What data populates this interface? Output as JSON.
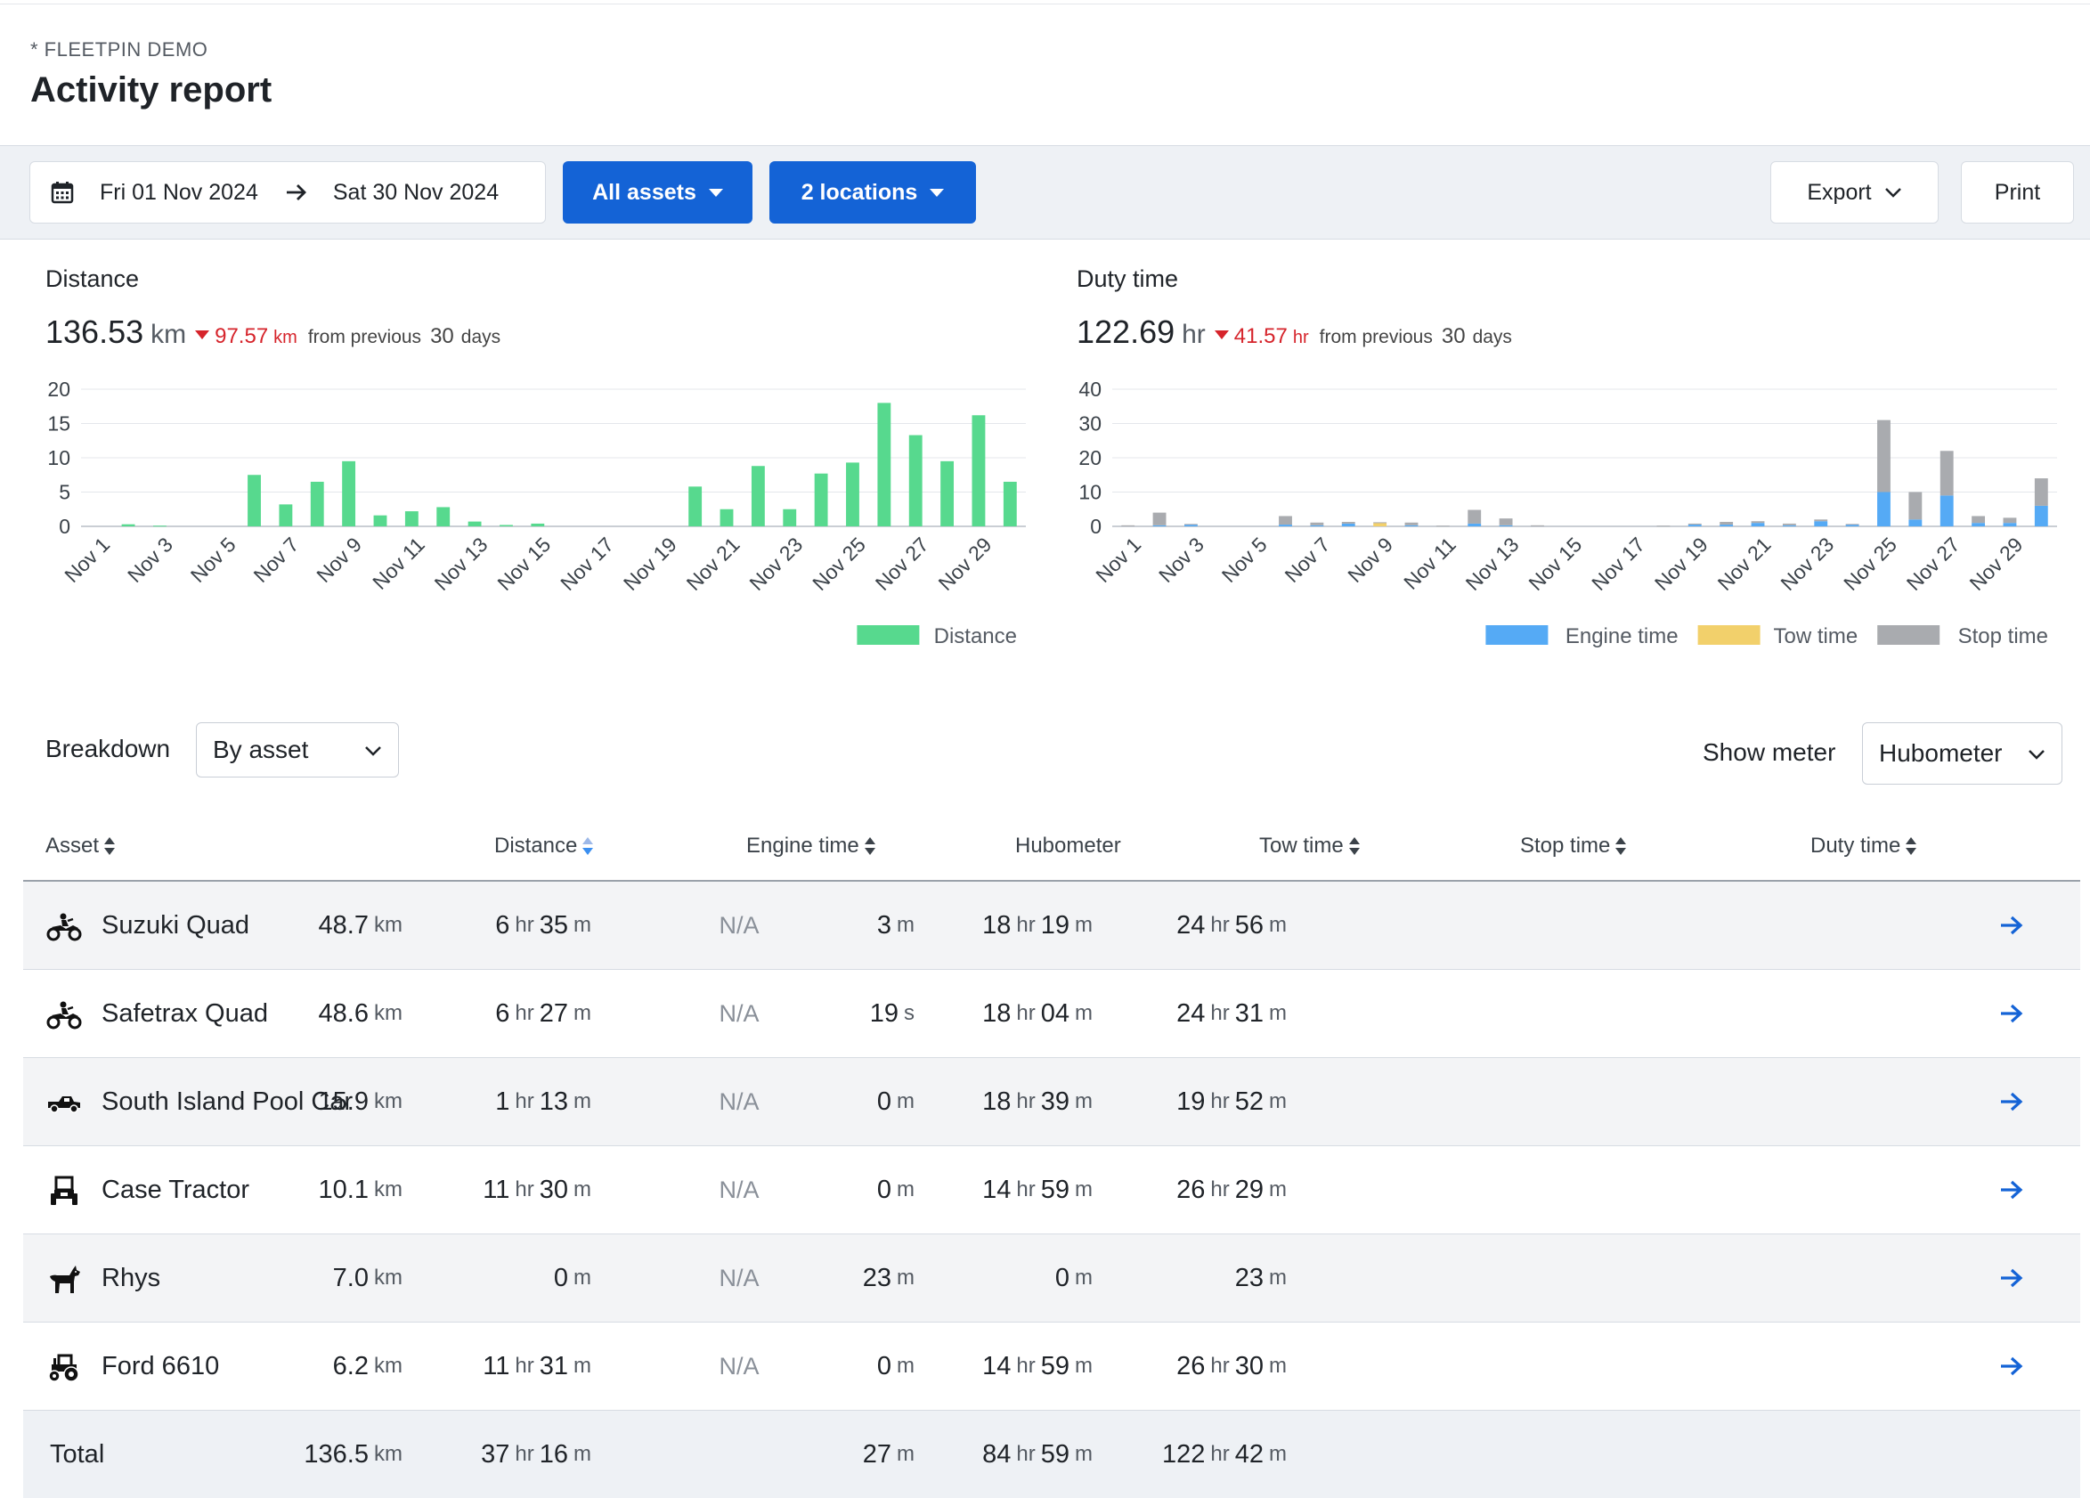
{
  "header": {
    "org": "* FLEETPIN DEMO",
    "title": "Activity report"
  },
  "toolbar": {
    "date_from": "Fri 01 Nov 2024",
    "date_to": "Sat 30 Nov 2024",
    "assets_label": "All assets",
    "locations_label": "2 locations",
    "export_label": "Export",
    "print_label": "Print"
  },
  "distance": {
    "title": "Distance",
    "value": "136.53",
    "unit": "km",
    "delta": "97.57",
    "delta_unit": "km",
    "from_text": "from previous",
    "days": "30",
    "days_label": "days"
  },
  "duty": {
    "title": "Duty time",
    "value": "122.69",
    "unit": "hr",
    "delta": "41.57",
    "delta_unit": "hr",
    "from_text": "from previous",
    "days": "30",
    "days_label": "days"
  },
  "chart_data": [
    {
      "type": "bar",
      "title": "",
      "x": [
        1,
        2,
        3,
        4,
        5,
        6,
        7,
        8,
        9,
        10,
        11,
        12,
        13,
        14,
        15,
        16,
        17,
        18,
        19,
        20,
        21,
        22,
        23,
        24,
        25,
        26,
        27,
        28,
        29,
        30
      ],
      "tick_labels": [
        "Nov 1",
        "Nov 3",
        "Nov 5",
        "Nov 7",
        "Nov 9",
        "Nov 11",
        "Nov 13",
        "Nov 15",
        "Nov 17",
        "Nov 19",
        "Nov 21",
        "Nov 23",
        "Nov 25",
        "Nov 27",
        "Nov 29"
      ],
      "yticks": [
        0,
        5,
        10,
        15,
        20
      ],
      "ylim": [
        0,
        20
      ],
      "grid": true,
      "legend": "bottom-right",
      "series": [
        {
          "name": "Distance",
          "color": "#57d98e",
          "values": [
            0,
            0.3,
            0.1,
            0,
            0,
            7.5,
            3.2,
            6.5,
            9.5,
            1.6,
            2.2,
            2.8,
            0.7,
            0.2,
            0.4,
            0,
            0,
            0,
            0,
            5.8,
            2.5,
            8.8,
            2.5,
            7.7,
            9.3,
            18,
            13.3,
            9.5,
            16.2,
            6.5
          ]
        }
      ]
    },
    {
      "type": "bar",
      "stacked": true,
      "title": "",
      "x": [
        1,
        2,
        3,
        4,
        5,
        6,
        7,
        8,
        9,
        10,
        11,
        12,
        13,
        14,
        15,
        16,
        17,
        18,
        19,
        20,
        21,
        22,
        23,
        24,
        25,
        26,
        27,
        28,
        29,
        30
      ],
      "tick_labels": [
        "Nov 1",
        "Nov 3",
        "Nov 5",
        "Nov 7",
        "Nov 9",
        "Nov 11",
        "Nov 13",
        "Nov 15",
        "Nov 17",
        "Nov 19",
        "Nov 21",
        "Nov 23",
        "Nov 25",
        "Nov 27",
        "Nov 29"
      ],
      "yticks": [
        0,
        10,
        20,
        30,
        40
      ],
      "ylim": [
        0,
        40
      ],
      "grid": true,
      "legend": "bottom-right",
      "series": [
        {
          "name": "Engine time",
          "color": "#55aaf5",
          "values": [
            0,
            0.3,
            0.5,
            0,
            0,
            0.5,
            0.3,
            0.8,
            0,
            0.3,
            0,
            0.8,
            0.3,
            0,
            0,
            0,
            0,
            0,
            0.5,
            0.5,
            1.0,
            0.3,
            1.5,
            0.5,
            10,
            2,
            9,
            1,
            1,
            6
          ]
        },
        {
          "name": "Tow time",
          "color": "#f2d06b",
          "values": [
            0,
            0,
            0,
            0,
            0,
            0,
            0,
            0,
            1.0,
            0,
            0,
            0,
            0,
            0,
            0,
            0,
            0,
            0,
            0,
            0,
            0,
            0,
            0,
            0,
            0,
            0,
            0,
            0,
            0,
            0
          ]
        },
        {
          "name": "Stop time",
          "color": "#a9abaf",
          "values": [
            0.3,
            3.7,
            0.2,
            0,
            0,
            2.5,
            0.8,
            0.5,
            0.2,
            0.8,
            0.2,
            4,
            2,
            0.3,
            0,
            0,
            0,
            0.2,
            0.3,
            0.8,
            0.5,
            0.5,
            0.5,
            0.2,
            21,
            8,
            13,
            2,
            1.5,
            8
          ]
        }
      ]
    }
  ],
  "breakdown": {
    "label": "Breakdown",
    "value": "By asset"
  },
  "meter": {
    "label": "Show meter",
    "value": "Hubometer"
  },
  "table": {
    "headers": {
      "asset": "Asset",
      "distance": "Distance",
      "engine": "Engine time",
      "hubometer": "Hubometer",
      "tow": "Tow time",
      "stop": "Stop time",
      "duty": "Duty time"
    },
    "rows": [
      {
        "icon": "quad-bike-icon",
        "name": "Suzuki Quad",
        "distance": "48.7",
        "distance_unit": "km",
        "engine": [
          "6",
          "hr",
          "35",
          "m"
        ],
        "hubometer": "N/A",
        "tow": [
          "3",
          "m"
        ],
        "stop": [
          "18",
          "hr",
          "19",
          "m"
        ],
        "duty": [
          "24",
          "hr",
          "56",
          "m"
        ]
      },
      {
        "icon": "quad-bike-icon",
        "name": "Safetrax Quad",
        "distance": "48.6",
        "distance_unit": "km",
        "engine": [
          "6",
          "hr",
          "27",
          "m"
        ],
        "hubometer": "N/A",
        "tow": [
          "19",
          "s"
        ],
        "stop": [
          "18",
          "hr",
          "04",
          "m"
        ],
        "duty": [
          "24",
          "hr",
          "31",
          "m"
        ]
      },
      {
        "icon": "ute-icon",
        "name": "South Island Pool Car",
        "distance": "15.9",
        "distance_unit": "km",
        "engine": [
          "1",
          "hr",
          "13",
          "m"
        ],
        "hubometer": "N/A",
        "tow": [
          "0",
          "m"
        ],
        "stop": [
          "18",
          "hr",
          "39",
          "m"
        ],
        "duty": [
          "19",
          "hr",
          "52",
          "m"
        ]
      },
      {
        "icon": "tractor-front-icon",
        "name": "Case Tractor",
        "distance": "10.1",
        "distance_unit": "km",
        "engine": [
          "11",
          "hr",
          "30",
          "m"
        ],
        "hubometer": "N/A",
        "tow": [
          "0",
          "m"
        ],
        "stop": [
          "14",
          "hr",
          "59",
          "m"
        ],
        "duty": [
          "26",
          "hr",
          "29",
          "m"
        ]
      },
      {
        "icon": "dog-icon",
        "name": "Rhys",
        "distance": "7.0",
        "distance_unit": "km",
        "engine": [
          "0",
          "m"
        ],
        "hubometer": "N/A",
        "tow": [
          "23",
          "m"
        ],
        "stop": [
          "0",
          "m"
        ],
        "duty": [
          "23",
          "m"
        ]
      },
      {
        "icon": "tractor-icon",
        "name": "Ford 6610",
        "distance": "6.2",
        "distance_unit": "km",
        "engine": [
          "11",
          "hr",
          "31",
          "m"
        ],
        "hubometer": "N/A",
        "tow": [
          "0",
          "m"
        ],
        "stop": [
          "14",
          "hr",
          "59",
          "m"
        ],
        "duty": [
          "26",
          "hr",
          "30",
          "m"
        ]
      }
    ],
    "total": {
      "label": "Total",
      "distance": "136.5",
      "distance_unit": "km",
      "engine": [
        "37",
        "hr",
        "16",
        "m"
      ],
      "tow": [
        "27",
        "m"
      ],
      "stop": [
        "84",
        "hr",
        "59",
        "m"
      ],
      "duty": [
        "122",
        "hr",
        "42",
        "m"
      ]
    }
  }
}
